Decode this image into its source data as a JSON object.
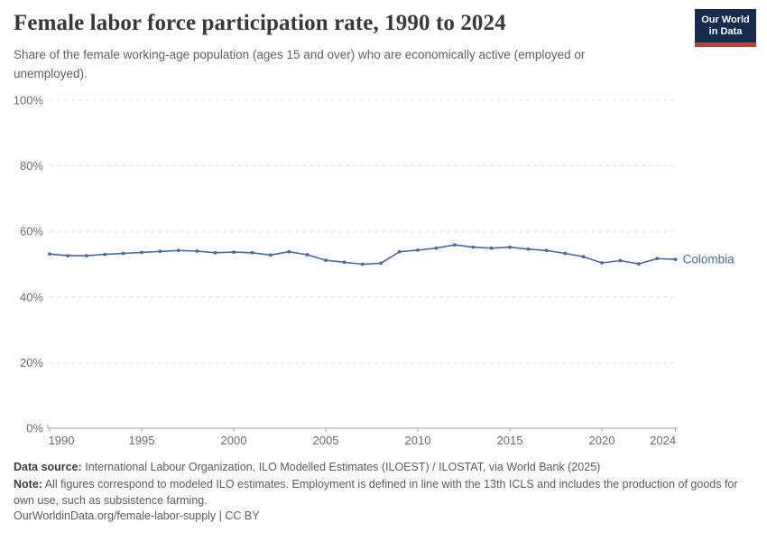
{
  "header": {
    "title": "Female labor force participation rate, 1990 to 2024",
    "subtitle": "Share of the female working-age population (ages 15 and over) who are economically active (employed or unemployed).",
    "logo": {
      "line1": "Our World",
      "line2": "in Data",
      "bg_color": "#152C4F",
      "accent_color": "#CB3A2A"
    }
  },
  "chart_data": {
    "type": "line",
    "title": "Female labor force participation rate, 1990 to 2024",
    "xlabel": "",
    "ylabel": "",
    "ylim": [
      0,
      100
    ],
    "ytick_suffix": "%",
    "yticks": [
      0,
      20,
      40,
      60,
      80,
      100
    ],
    "xticks": [
      1990,
      1995,
      2000,
      2005,
      2010,
      2015,
      2020,
      2024
    ],
    "grid": "horizontal-dashed",
    "legend": "inline-end-of-line-label",
    "x": [
      1990,
      1991,
      1992,
      1993,
      1994,
      1995,
      1996,
      1997,
      1998,
      1999,
      2000,
      2001,
      2002,
      2003,
      2004,
      2005,
      2006,
      2007,
      2008,
      2009,
      2010,
      2011,
      2012,
      2013,
      2014,
      2015,
      2016,
      2017,
      2018,
      2019,
      2020,
      2021,
      2022,
      2023,
      2024
    ],
    "series": [
      {
        "name": "Colombia",
        "color": "#466AA4",
        "values": [
          53.1,
          52.6,
          52.6,
          53.0,
          53.3,
          53.6,
          53.9,
          54.2,
          54.0,
          53.5,
          53.7,
          53.5,
          52.8,
          53.8,
          52.9,
          51.2,
          50.6,
          50.0,
          50.3,
          53.8,
          54.3,
          54.9,
          55.9,
          55.2,
          54.9,
          55.2,
          54.6,
          54.2,
          53.3,
          52.3,
          50.4,
          51.1,
          50.1,
          51.7,
          51.5
        ]
      }
    ],
    "axis_color": "#a3a3a3",
    "gridline_color": "#dcdcdc",
    "tick_label_color": "#6b6b6b"
  },
  "footer": {
    "data_source_label": "Data source:",
    "data_source_text": "International Labour Organization, ILO Modelled Estimates (ILOEST) / ILOSTAT, via World Bank (2025)",
    "note_label": "Note:",
    "note_text": "All figures correspond to modeled ILO estimates. Employment is defined in line with the 13th ICLS and includes the production of goods for own use, such as subsistence farming.",
    "citation": "OurWorldinData.org/female-labor-supply | CC BY"
  }
}
